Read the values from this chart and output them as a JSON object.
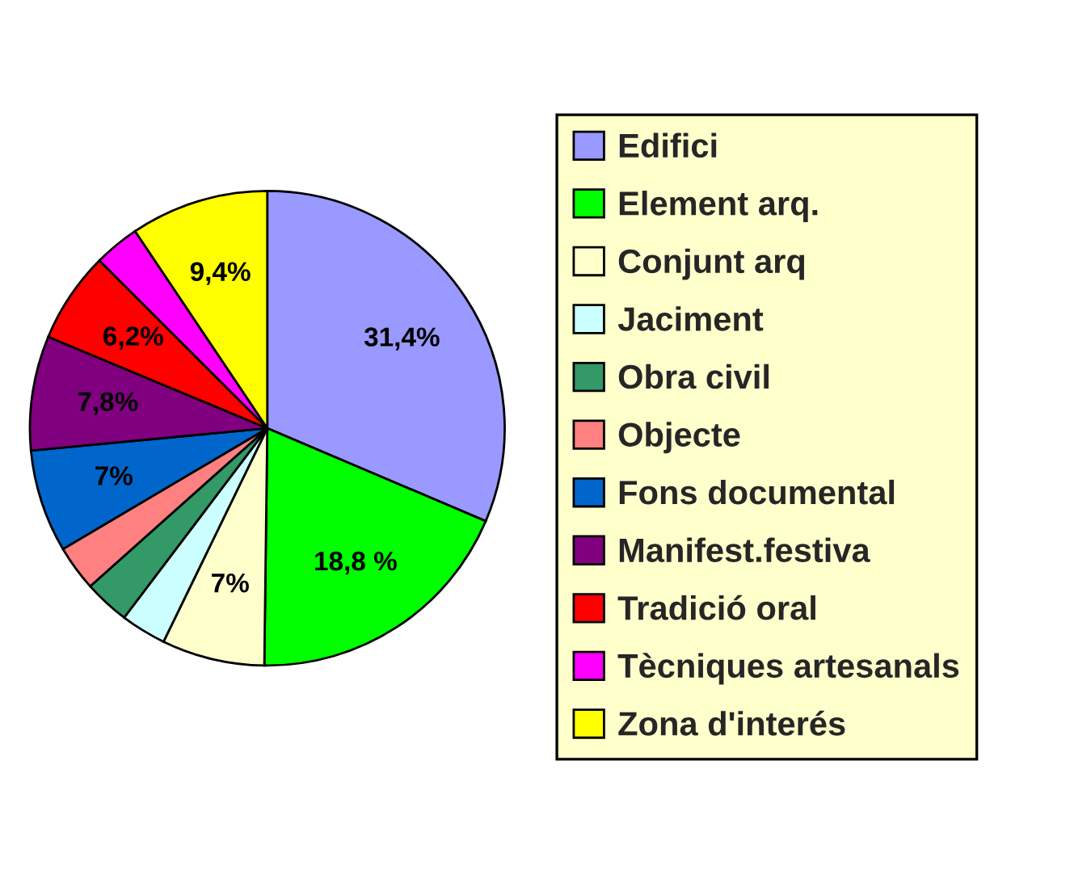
{
  "chart_data": {
    "type": "pie",
    "categories": [
      "Edifici",
      "Element arq.",
      "Conjunt arq",
      "Jaciment",
      "Obra civil",
      "Objecte",
      "Fons documental",
      "Manifest.festiva",
      "Tradició oral",
      "Tècniques artesanals",
      "Zona d'interés"
    ],
    "values": [
      31.4,
      18.8,
      7,
      3.1,
      3.1,
      3.1,
      7,
      7.8,
      6.2,
      3.1,
      9.4
    ],
    "value_labels": [
      "31,4%",
      "18,8 %",
      "7%",
      null,
      null,
      null,
      "7%",
      "7,8%",
      "6,2%",
      null,
      "9,4%"
    ],
    "colors": [
      "#9999ff",
      "#00ff00",
      "#ffffcc",
      "#ccffff",
      "#339966",
      "#ff8080",
      "#0066cc",
      "#800080",
      "#ff0000",
      "#ff00ff",
      "#ffff00"
    ],
    "legend": "right"
  }
}
